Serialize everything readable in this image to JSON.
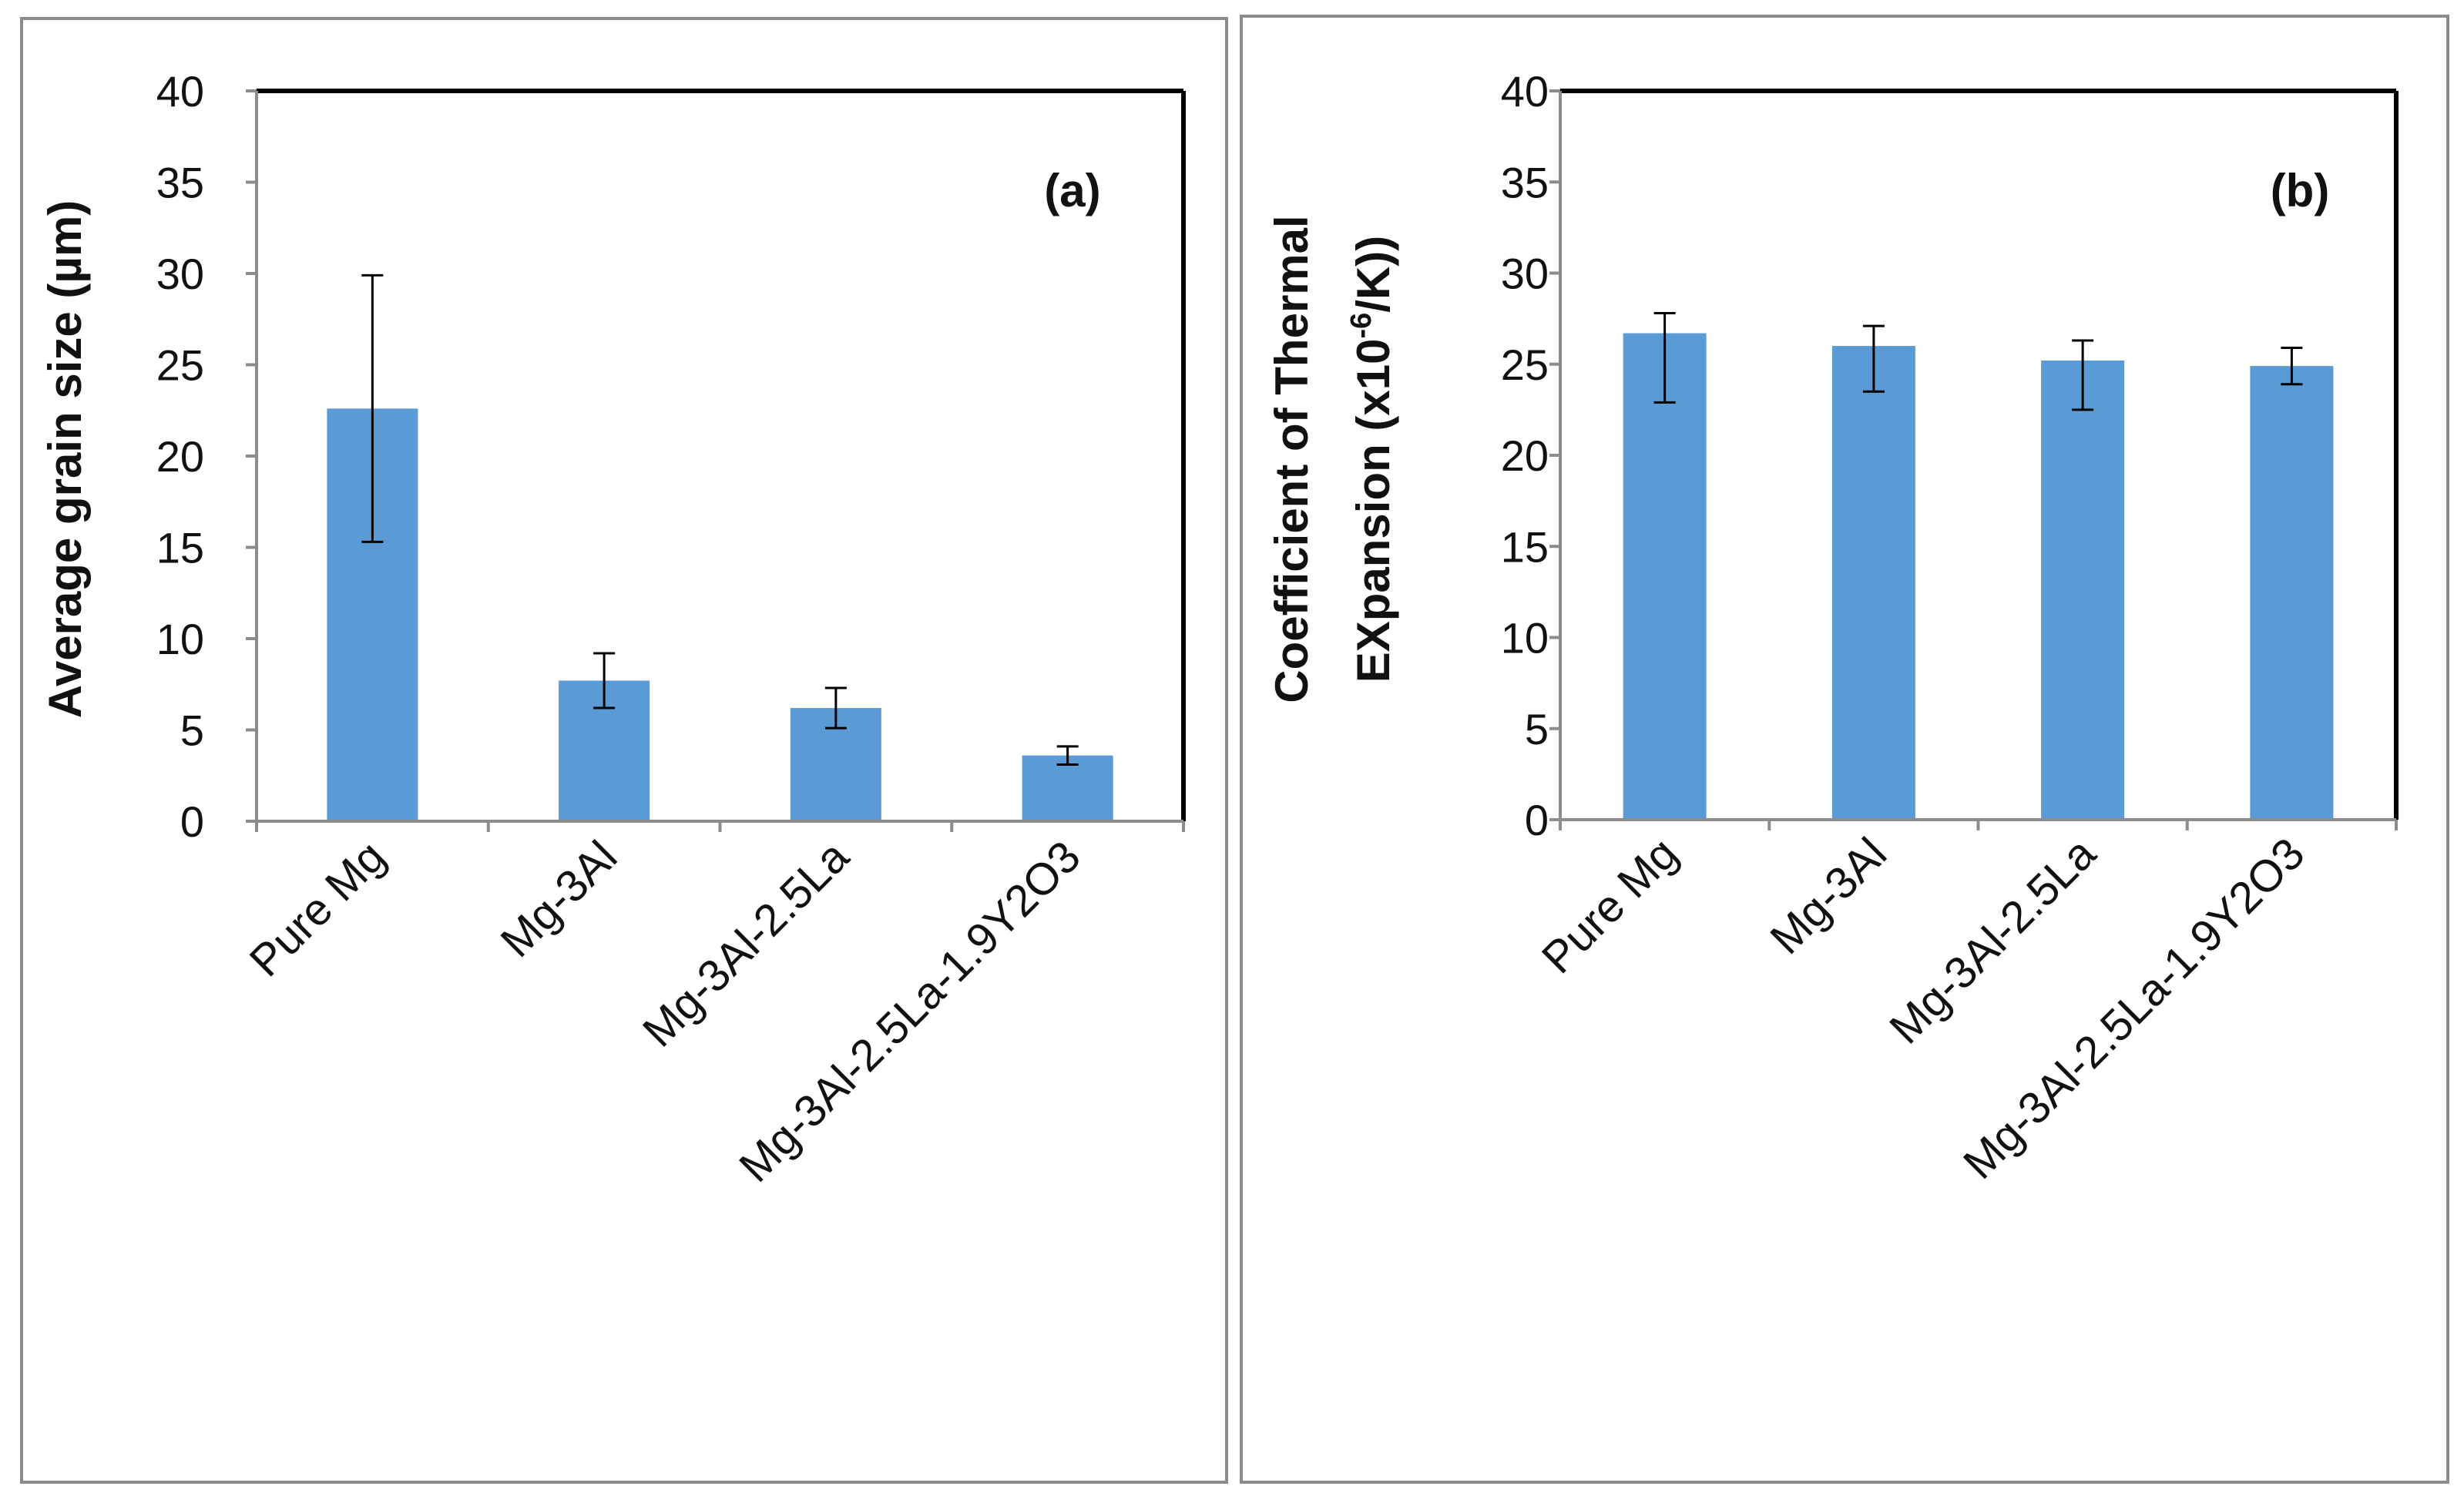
{
  "chart_data": [
    {
      "type": "bar",
      "panel_label": "(a)",
      "title": "",
      "xlabel": "",
      "ylabel": "Average grain size  (µm)",
      "ylim": [
        0,
        40
      ],
      "yticks": [
        0,
        5,
        10,
        15,
        20,
        25,
        30,
        35,
        40
      ],
      "categories": [
        "Pure Mg",
        "Mg-3Al",
        "Mg-3Al-2.5La",
        "Mg-3Al-2.5La-1.9Y2O3"
      ],
      "values": [
        22.6,
        7.7,
        6.2,
        3.6
      ],
      "error_plus": [
        7.3,
        1.5,
        1.1,
        0.5
      ],
      "error_minus": [
        7.3,
        1.5,
        1.1,
        0.5
      ],
      "bar_color": "#5b9bd5"
    },
    {
      "type": "bar",
      "panel_label": "(b)",
      "title": "",
      "xlabel": "",
      "ylabel_line1": "Coefficient of Thermal",
      "ylabel_line2_prefix": "EXpansion (x10",
      "ylabel_line2_sup": "-6",
      "ylabel_line2_suffix": "/K))",
      "ylim": [
        0,
        40
      ],
      "yticks": [
        0,
        5,
        10,
        15,
        20,
        25,
        30,
        35,
        40
      ],
      "categories": [
        "Pure Mg",
        "Mg-3Al",
        "Mg-3Al-2.5La",
        "Mg-3Al-2.5La-1.9Y2O3"
      ],
      "values": [
        26.7,
        26.0,
        25.2,
        24.9
      ],
      "error_plus": [
        1.1,
        1.1,
        1.1,
        1.0
      ],
      "error_minus": [
        3.8,
        2.5,
        2.7,
        1.0
      ],
      "bar_color": "#5b9bd5"
    }
  ]
}
